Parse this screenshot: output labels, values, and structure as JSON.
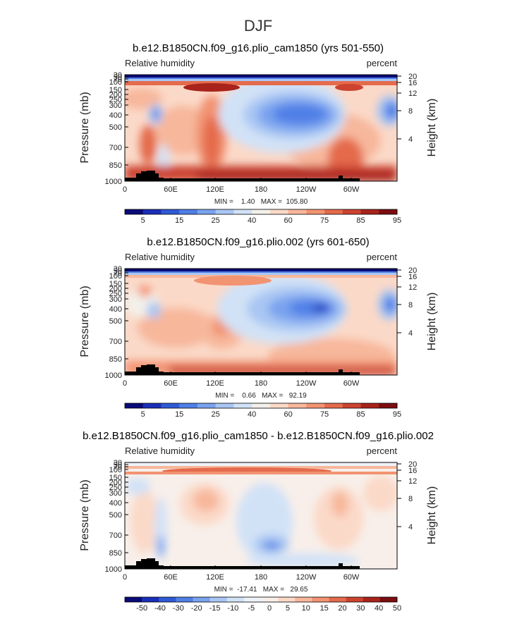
{
  "page": {
    "title": "DJF"
  },
  "chart_data": [
    {
      "type": "heatmap",
      "title": "b.e12.B1850CN.f09_g16.plio_cam1850 (yrs 501-550)",
      "left_label": "Relative humidity",
      "right_label": "percent",
      "ylabel": "Pressure (mb)",
      "y2label": "Height (km)",
      "xticks": [
        "0",
        "60E",
        "120E",
        "180",
        "120W",
        "60W"
      ],
      "yticks": [
        "30",
        "50",
        "70",
        "100",
        "150",
        "200",
        "250",
        "300",
        "400",
        "500",
        "700",
        "850",
        "1000"
      ],
      "y2ticks": [
        "20",
        "16",
        "12",
        "8",
        "4"
      ],
      "stats": "MIN =    1.40   MAX =  105.80",
      "min": 1.4,
      "max": 105.8,
      "colorbar": {
        "levels": [
          "5",
          "15",
          "25",
          "40",
          "60",
          "75",
          "85",
          "95"
        ],
        "colors": [
          "#0a0a78",
          "#1a2fb8",
          "#2f5ad6",
          "#4f7fe6",
          "#7aa3ef",
          "#a9c6f3",
          "#d1e2f7",
          "#f3f0ea",
          "#fbd9c8",
          "#f7b79b",
          "#f29372",
          "#e46b4c",
          "#cc4330",
          "#a8231b",
          "#7c0d10"
        ]
      }
    },
    {
      "type": "heatmap",
      "title": "b.e12.B1850CN.f09_g16.plio.002 (yrs 601-650)",
      "left_label": "Relative humidity",
      "right_label": "percent",
      "ylabel": "Pressure (mb)",
      "y2label": "Height (km)",
      "xticks": [
        "0",
        "60E",
        "120E",
        "180",
        "120W",
        "60W"
      ],
      "yticks": [
        "30",
        "50",
        "70",
        "100",
        "150",
        "200",
        "250",
        "300",
        "400",
        "500",
        "700",
        "850",
        "1000"
      ],
      "y2ticks": [
        "20",
        "16",
        "12",
        "8",
        "4"
      ],
      "stats": "MIN =    0.66   MAX =   92.19",
      "min": 0.66,
      "max": 92.19,
      "colorbar": {
        "levels": [
          "5",
          "15",
          "25",
          "40",
          "60",
          "75",
          "85",
          "95"
        ],
        "colors": [
          "#0a0a78",
          "#1a2fb8",
          "#2f5ad6",
          "#4f7fe6",
          "#7aa3ef",
          "#a9c6f3",
          "#d1e2f7",
          "#f3f0ea",
          "#fbd9c8",
          "#f7b79b",
          "#f29372",
          "#e46b4c",
          "#cc4330",
          "#a8231b",
          "#7c0d10"
        ]
      }
    },
    {
      "type": "heatmap",
      "title": "b.e12.B1850CN.f09_g16.plio_cam1850 - b.e12.B1850CN.f09_g16.plio.002",
      "left_label": "Relative humidity",
      "right_label": "percent",
      "ylabel": "Pressure (mb)",
      "y2label": "Height (km)",
      "xticks": [
        "0",
        "60E",
        "120E",
        "180",
        "120W",
        "60W"
      ],
      "yticks": [
        "30",
        "50",
        "70",
        "100",
        "150",
        "200",
        "250",
        "300",
        "400",
        "500",
        "700",
        "850",
        "1000"
      ],
      "y2ticks": [
        "20",
        "16",
        "12",
        "8",
        "4"
      ],
      "stats": "MIN =  -17.41   MAX =   29.65",
      "min": -17.41,
      "max": 29.65,
      "colorbar": {
        "levels": [
          "-50",
          "-40",
          "-30",
          "-20",
          "-15",
          "-10",
          "-5",
          "0",
          "5",
          "10",
          "15",
          "20",
          "30",
          "40",
          "50"
        ],
        "colors": [
          "#0a0a78",
          "#1a2fb8",
          "#2f5ad6",
          "#4f7fe6",
          "#7aa3ef",
          "#a9c6f3",
          "#d1e2f7",
          "#eef2f8",
          "#f8efea",
          "#fbd9c8",
          "#f7b79b",
          "#f29372",
          "#e46b4c",
          "#cc4330",
          "#a8231b",
          "#7c0d10"
        ]
      }
    }
  ]
}
